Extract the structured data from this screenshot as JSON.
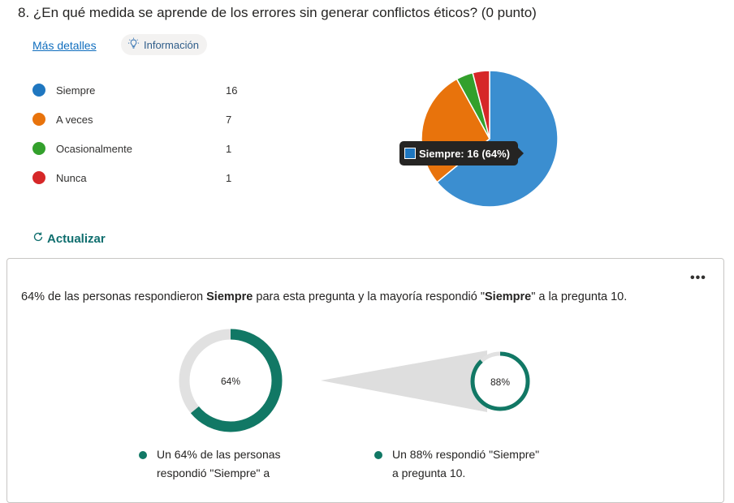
{
  "question": {
    "number": "8.",
    "text": "¿En qué medida se aprende de los errores sin generar conflictos éticos? (0 punto)"
  },
  "links": {
    "more_details": "Más detalles",
    "info": "Información",
    "refresh": "Actualizar"
  },
  "icons": {
    "info": "lightbulb-icon",
    "refresh": "refresh-icon",
    "menu": "ellipsis-icon"
  },
  "chart_data": {
    "type": "pie",
    "categories": [
      "Siempre",
      "A veces",
      "Ocasionalmente",
      "Nunca"
    ],
    "values": [
      16,
      7,
      1,
      1
    ],
    "colors": [
      "#3b8ed0",
      "#e8730c",
      "#33a02c",
      "#d62728"
    ],
    "legend_position": "left"
  },
  "legend": [
    {
      "label": "Siempre",
      "count": "16",
      "color": "#1f77c0"
    },
    {
      "label": "A veces",
      "count": "7",
      "color": "#e8730c"
    },
    {
      "label": "Ocasionalmente",
      "count": "1",
      "color": "#33a02c"
    },
    {
      "label": "Nunca",
      "count": "1",
      "color": "#d62728"
    }
  ],
  "tooltip": {
    "text": "Siempre: 16 (64%)",
    "color": "#1f77c0"
  },
  "insight": {
    "part1": "64% de las personas respondieron ",
    "bold1": "Siempre",
    "part2": " para esta pregunta y la mayoría respondió \"",
    "bold2": "Siempre",
    "part3": "\" a la pregunta 10."
  },
  "donuts": {
    "primary": {
      "percent": 64,
      "label": "64%"
    },
    "secondary": {
      "percent": 88,
      "label": "88%"
    },
    "fill_color": "#117865",
    "track_color": "#e1e1e1"
  },
  "bullets": {
    "left_line1": "Un 64% de las personas",
    "left_line2": "respondió \"Siempre\" a",
    "right_line1": "Un 88% respondió \"Siempre\"",
    "right_line2": "a pregunta 10."
  }
}
